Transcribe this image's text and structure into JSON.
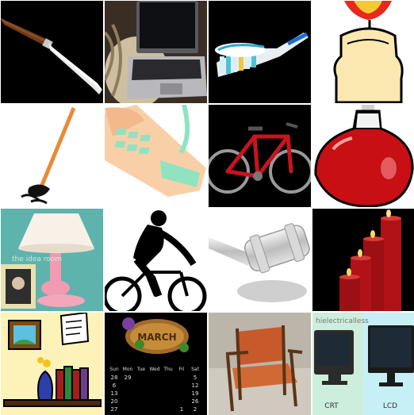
{
  "colors": {
    "background": "#ffffff",
    "black": "#000000",
    "bike_red": "#c8141e",
    "flask_red": "#c80f14",
    "candle_cream": "#fbe7b0",
    "phone_peach": "#f8cfa6",
    "phone_mint": "#8fe3c3",
    "lamp_teal": "#5fb3ad",
    "lamp_pink": "#f29ab1",
    "chair_orange": "#c65a2b",
    "candle_red": "#b01217",
    "tv_screen": "#1e2a36"
  },
  "tiles": [
    {
      "name": "knife",
      "icon": "knife-icon"
    },
    {
      "name": "laptop",
      "icon": "laptop-icon"
    },
    {
      "name": "toothbrush",
      "icon": "toothbrush-icon"
    },
    {
      "name": "candle",
      "icon": "candle-icon"
    },
    {
      "name": "matchstick",
      "icon": "matchstick-icon"
    },
    {
      "name": "telephone",
      "icon": "telephone-icon"
    },
    {
      "name": "bicycle",
      "icon": "bicycle-icon"
    },
    {
      "name": "flask",
      "icon": "flask-icon"
    },
    {
      "name": "lamp",
      "icon": "lamp-icon"
    },
    {
      "name": "cyclist",
      "icon": "cyclist-icon"
    },
    {
      "name": "gavel",
      "icon": "gavel-icon"
    },
    {
      "name": "candles",
      "icon": "candles-icon"
    },
    {
      "name": "shelf",
      "icon": "shelf-icon"
    },
    {
      "name": "calendar",
      "icon": "calendar-icon"
    },
    {
      "name": "chair",
      "icon": "chair-icon"
    },
    {
      "name": "monitors",
      "icon": "monitors-icon"
    }
  ],
  "lamp": {
    "watermark": "the idea room"
  },
  "calendar": {
    "month": "MARCH",
    "weekdays": [
      "Sun",
      "Mon",
      "Tue",
      "Wed",
      "Thu",
      "Fri",
      "Sat"
    ],
    "rows": [
      [
        "28",
        "29",
        "",
        "",
        "",
        "",
        "5"
      ],
      [
        "6",
        "",
        "",
        "",
        "",
        "",
        "12"
      ],
      [
        "13",
        "",
        "",
        "",
        "",
        "",
        "19"
      ],
      [
        "20",
        "",
        "",
        "",
        "",
        "",
        "26"
      ],
      [
        "27",
        "",
        "",
        "",
        "",
        "1",
        "2"
      ]
    ]
  },
  "monitors": {
    "watermark": "hielectricalless",
    "left_label": "CRT",
    "right_label": "LCD"
  }
}
